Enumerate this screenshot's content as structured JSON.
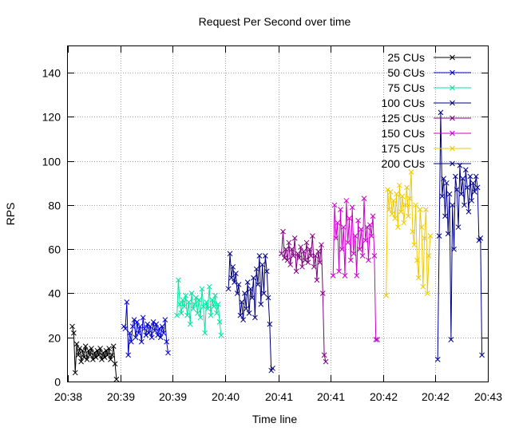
{
  "chart_data": {
    "type": "line",
    "title": "Request Per Second over time",
    "xlabel": "Time line",
    "ylabel": "RPS",
    "ylim": [
      0,
      152
    ],
    "yticks": [
      0,
      20,
      40,
      60,
      80,
      100,
      120,
      140
    ],
    "xlim": [
      "20:38:21",
      "20:43:06"
    ],
    "xticks": [
      {
        "t": "20:38:21",
        "label": "20:38"
      },
      {
        "t": "20:38:57",
        "label": "20:39"
      },
      {
        "t": "20:39:32",
        "label": "20:39"
      },
      {
        "t": "20:40:08",
        "label": "20:40"
      },
      {
        "t": "20:40:44",
        "label": "20:41"
      },
      {
        "t": "20:41:19",
        "label": "20:41"
      },
      {
        "t": "20:41:55",
        "label": "20:42"
      },
      {
        "t": "20:42:30",
        "label": "20:42"
      },
      {
        "t": "20:43:06",
        "label": "20:43"
      }
    ],
    "grid": true,
    "legend_position": "top-right",
    "series": [
      {
        "name": "25 CUs",
        "color": "#000000",
        "x": [
          "20:38:24",
          "20:38:25",
          "20:38:26",
          "20:38:27",
          "20:38:28",
          "20:38:29",
          "20:38:30",
          "20:38:31",
          "20:38:32",
          "20:38:33",
          "20:38:34",
          "20:38:35",
          "20:38:36",
          "20:38:37",
          "20:38:38",
          "20:38:39",
          "20:38:40",
          "20:38:41",
          "20:38:42",
          "20:38:43",
          "20:38:44",
          "20:38:45",
          "20:38:46",
          "20:38:47",
          "20:38:48",
          "20:38:49",
          "20:38:50",
          "20:38:51",
          "20:38:52",
          "20:38:53",
          "20:38:54"
        ],
        "y": [
          25,
          22,
          4,
          17,
          12,
          15,
          9,
          14,
          11,
          16,
          10,
          14,
          12,
          15,
          10,
          13,
          11,
          14,
          12,
          15,
          10,
          13,
          11,
          14,
          12,
          15,
          10,
          12,
          16,
          8,
          1
        ]
      },
      {
        "name": "50 CUs",
        "color": "#0000cc",
        "x": [
          "20:38:59",
          "20:39:00",
          "20:39:01",
          "20:39:02",
          "20:39:03",
          "20:39:04",
          "20:39:05",
          "20:39:06",
          "20:39:07",
          "20:39:08",
          "20:39:09",
          "20:39:10",
          "20:39:11",
          "20:39:12",
          "20:39:13",
          "20:39:14",
          "20:39:15",
          "20:39:16",
          "20:39:17",
          "20:39:18",
          "20:39:19",
          "20:39:20",
          "20:39:21",
          "20:39:22",
          "20:39:23",
          "20:39:24",
          "20:39:25",
          "20:39:26",
          "20:39:27",
          "20:39:28",
          "20:39:29"
        ],
        "y": [
          25,
          24,
          36,
          12,
          22,
          18,
          25,
          28,
          20,
          27,
          22,
          25,
          18,
          29,
          24,
          21,
          26,
          22,
          25,
          20,
          27,
          23,
          26,
          21,
          24,
          20,
          25,
          22,
          28,
          18,
          13
        ]
      },
      {
        "name": "75 CUs",
        "color": "#00e5a0",
        "x": [
          "20:39:35",
          "20:39:36",
          "20:39:37",
          "20:39:38",
          "20:39:39",
          "20:39:40",
          "20:39:41",
          "20:39:42",
          "20:39:43",
          "20:39:44",
          "20:39:45",
          "20:39:46",
          "20:39:47",
          "20:39:48",
          "20:39:49",
          "20:39:50",
          "20:39:51",
          "20:39:52",
          "20:39:53",
          "20:39:54",
          "20:39:55",
          "20:39:56",
          "20:39:57",
          "20:39:58",
          "20:39:59",
          "20:40:00",
          "20:40:01",
          "20:40:02",
          "20:40:03",
          "20:40:04",
          "20:40:05"
        ],
        "y": [
          30,
          46,
          35,
          31,
          37,
          34,
          39,
          30,
          36,
          26,
          40,
          33,
          35,
          38,
          31,
          37,
          29,
          42,
          34,
          22,
          36,
          33,
          43,
          30,
          37,
          34,
          39,
          31,
          35,
          27,
          21
        ]
      },
      {
        "name": "100 CUs",
        "color": "#000080",
        "x": [
          "20:40:10",
          "20:40:11",
          "20:40:12",
          "20:40:13",
          "20:40:14",
          "20:40:15",
          "20:40:16",
          "20:40:17",
          "20:40:18",
          "20:40:19",
          "20:40:20",
          "20:40:21",
          "20:40:22",
          "20:40:23",
          "20:40:24",
          "20:40:25",
          "20:40:26",
          "20:40:27",
          "20:40:28",
          "20:40:29",
          "20:40:30",
          "20:40:31",
          "20:40:32",
          "20:40:33",
          "20:40:34",
          "20:40:35",
          "20:40:36",
          "20:40:37",
          "20:40:38",
          "20:40:39",
          "20:40:40"
        ],
        "y": [
          42,
          58,
          47,
          52,
          45,
          49,
          40,
          44,
          30,
          36,
          28,
          40,
          33,
          45,
          31,
          42,
          38,
          47,
          29,
          51,
          44,
          57,
          35,
          53,
          40,
          57,
          50,
          38,
          26,
          5,
          6
        ]
      },
      {
        "name": "125 CUs",
        "color": "#800080",
        "x": [
          "20:40:46",
          "20:40:47",
          "20:40:48",
          "20:40:49",
          "20:40:50",
          "20:40:51",
          "20:40:52",
          "20:40:53",
          "20:40:54",
          "20:40:55",
          "20:40:56",
          "20:40:57",
          "20:40:58",
          "20:40:59",
          "20:41:00",
          "20:41:01",
          "20:41:02",
          "20:41:03",
          "20:41:04",
          "20:41:05",
          "20:41:06",
          "20:41:07",
          "20:41:08",
          "20:41:09",
          "20:41:10",
          "20:41:11",
          "20:41:12",
          "20:41:13",
          "20:41:14",
          "20:41:15",
          "20:41:16"
        ],
        "y": [
          58,
          68,
          56,
          60,
          55,
          63,
          53,
          60,
          57,
          65,
          50,
          58,
          56,
          61,
          52,
          59,
          55,
          63,
          54,
          60,
          57,
          66,
          52,
          57,
          46,
          59,
          54,
          62,
          40,
          12,
          9
        ]
      },
      {
        "name": "150 CUs",
        "color": "#cc00cc",
        "x": [
          "20:41:21",
          "20:41:22",
          "20:41:23",
          "20:41:24",
          "20:41:25",
          "20:41:26",
          "20:41:27",
          "20:41:28",
          "20:41:29",
          "20:41:30",
          "20:41:31",
          "20:41:32",
          "20:41:33",
          "20:41:34",
          "20:41:35",
          "20:41:36",
          "20:41:37",
          "20:41:38",
          "20:41:39",
          "20:41:40",
          "20:41:41",
          "20:41:42",
          "20:41:43",
          "20:41:44",
          "20:41:45",
          "20:41:46",
          "20:41:47",
          "20:41:48",
          "20:41:49",
          "20:41:50",
          "20:41:51"
        ],
        "y": [
          48,
          80,
          65,
          72,
          50,
          78,
          60,
          70,
          48,
          82,
          63,
          74,
          55,
          79,
          58,
          66,
          48,
          73,
          60,
          69,
          57,
          83,
          64,
          70,
          55,
          71,
          66,
          75,
          57,
          19,
          19
        ]
      },
      {
        "name": "175 CUs",
        "color": "#eec900",
        "x": [
          "20:41:57",
          "20:41:58",
          "20:41:59",
          "20:42:00",
          "20:42:01",
          "20:42:02",
          "20:42:03",
          "20:42:04",
          "20:42:05",
          "20:42:06",
          "20:42:07",
          "20:42:08",
          "20:42:09",
          "20:42:10",
          "20:42:11",
          "20:42:12",
          "20:42:13",
          "20:42:14",
          "20:42:15",
          "20:42:16",
          "20:42:17",
          "20:42:18",
          "20:42:19",
          "20:42:20",
          "20:42:21",
          "20:42:22",
          "20:42:23",
          "20:42:24",
          "20:42:25",
          "20:42:26",
          "20:42:27"
        ],
        "y": [
          39,
          87,
          78,
          86,
          76,
          82,
          74,
          85,
          70,
          89,
          77,
          84,
          72,
          80,
          88,
          75,
          83,
          95,
          68,
          62,
          80,
          55,
          47,
          78,
          70,
          43,
          65,
          78,
          40,
          57,
          66
        ]
      },
      {
        "name": "200 CUs",
        "color": "#00008b",
        "x": [
          "20:42:32",
          "20:42:33",
          "20:42:34",
          "20:42:35",
          "20:42:36",
          "20:42:37",
          "20:42:38",
          "20:42:39",
          "20:42:40",
          "20:42:41",
          "20:42:42",
          "20:42:43",
          "20:42:44",
          "20:42:45",
          "20:42:46",
          "20:42:47",
          "20:42:48",
          "20:42:49",
          "20:42:50",
          "20:42:51",
          "20:42:52",
          "20:42:53",
          "20:42:54",
          "20:42:55",
          "20:42:56",
          "20:42:57",
          "20:42:58",
          "20:42:59",
          "20:43:00",
          "20:43:01",
          "20:43:02"
        ],
        "y": [
          10,
          66,
          122,
          84,
          92,
          75,
          90,
          67,
          85,
          19,
          80,
          60,
          93,
          87,
          70,
          98,
          85,
          92,
          80,
          96,
          88,
          77,
          93,
          82,
          90,
          86,
          93,
          88,
          64,
          65,
          12
        ]
      }
    ]
  }
}
